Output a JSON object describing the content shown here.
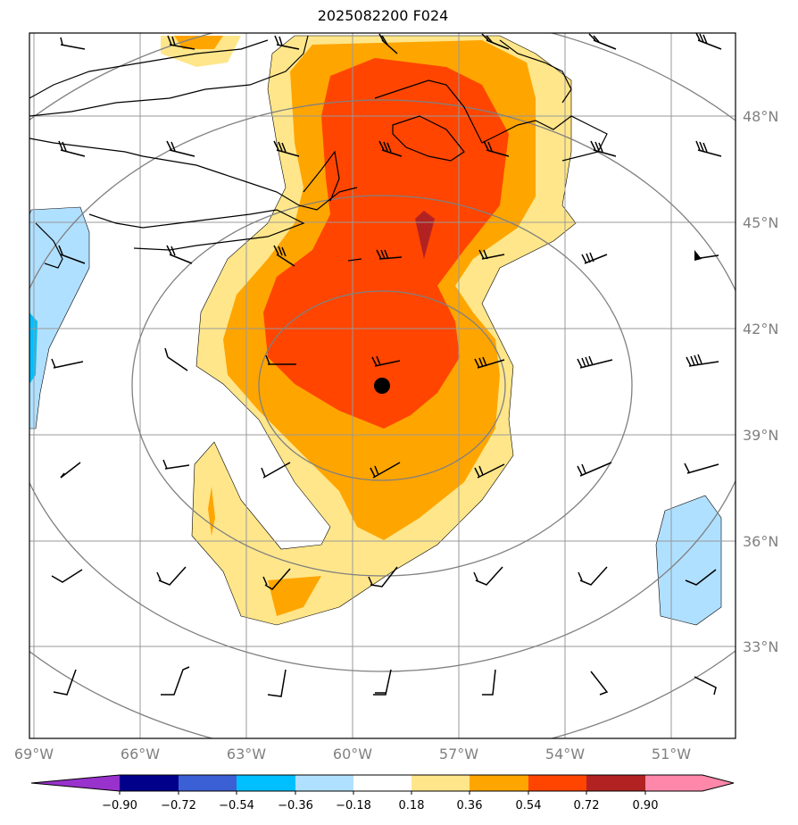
{
  "title": "2025082200 F024",
  "map": {
    "lat_labels": [
      "48°N",
      "45°N",
      "42°N",
      "39°N",
      "36°N",
      "33°N"
    ],
    "lon_labels": [
      "69°W",
      "66°W",
      "63°W",
      "60°W",
      "57°W",
      "54°W",
      "51°W"
    ],
    "center_marker": "storm-center"
  },
  "colorbar": {
    "labels": [
      "−0.90",
      "−0.72",
      "−0.54",
      "−0.36",
      "−0.18",
      "0.18",
      "0.36",
      "0.54",
      "0.72",
      "0.90"
    ],
    "colors": [
      "#9932cc",
      "#00008b",
      "#3b5fd4",
      "#00bfff",
      "#b0e0ff",
      "#ffffff",
      "#ffe68a",
      "#ffa500",
      "#ff4500",
      "#b22222",
      "#ff88aa"
    ]
  },
  "colors": {
    "c036": "#ffe68a",
    "c054": "#ffa500",
    "c072": "#ff4500",
    "c090": "#b22222",
    "cneg018": "#b0e0ff",
    "cneg036": "#00bfff",
    "grid": "#999999",
    "ring": "#808080"
  }
}
